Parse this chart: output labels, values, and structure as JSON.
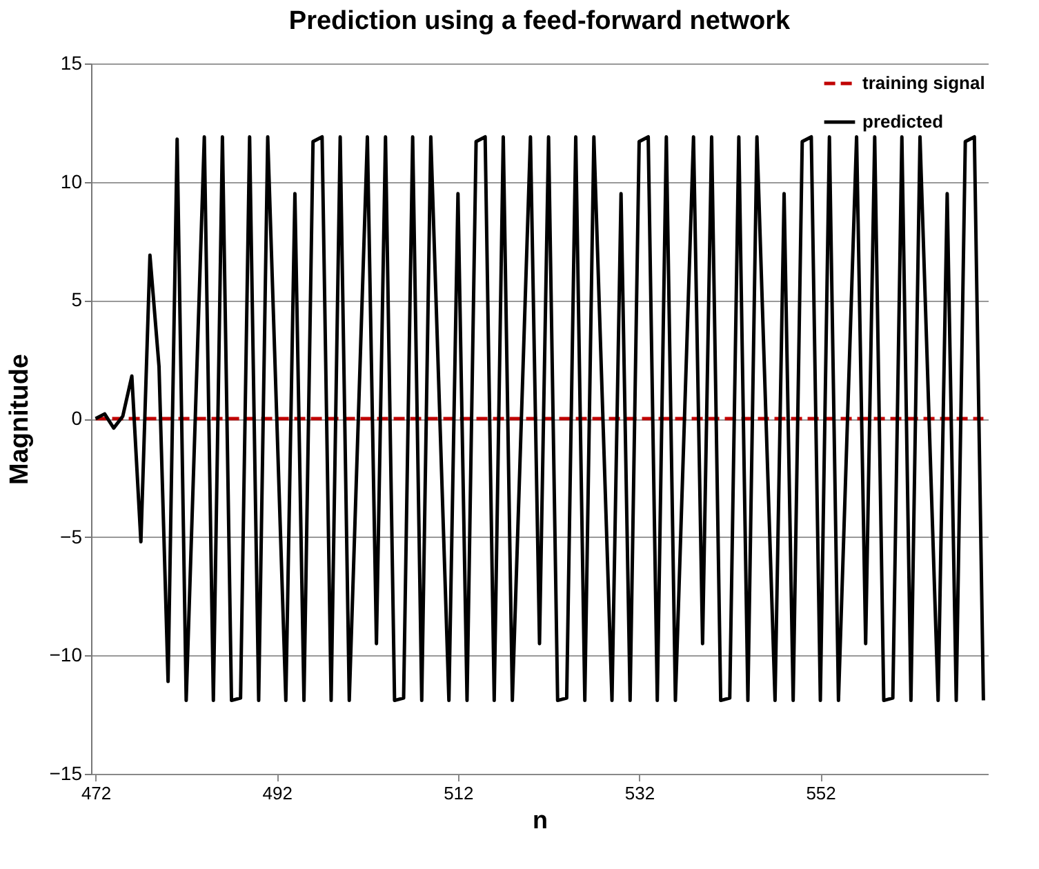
{
  "chart_data": {
    "type": "line",
    "title": "Prediction using a feed-forward network",
    "xlabel": "n",
    "ylabel": "Magnitude",
    "x": [
      472,
      473,
      474,
      475,
      476,
      477,
      478,
      479,
      480,
      481,
      482,
      483,
      484,
      485,
      486,
      487,
      488,
      489,
      490,
      491,
      492,
      493,
      494,
      495,
      496,
      497,
      498,
      499,
      500,
      501,
      502,
      503,
      504,
      505,
      506,
      507,
      508,
      509,
      510,
      511,
      512,
      513,
      514,
      515,
      516,
      517,
      518,
      519,
      520,
      521,
      522,
      523,
      524,
      525,
      526,
      527,
      528,
      529,
      530,
      531,
      532,
      533,
      534,
      535,
      536,
      537,
      538,
      539,
      540,
      541,
      542,
      543,
      544,
      545,
      546,
      547,
      548,
      549,
      550,
      551,
      552,
      553,
      554,
      555,
      556,
      557,
      558,
      559,
      560,
      561,
      562,
      563,
      564,
      565,
      566,
      567,
      568,
      569,
      570
    ],
    "series": [
      {
        "name": "training signal",
        "color": "#c00000",
        "line_style": "dashed",
        "values": [
          0,
          0,
          0,
          0,
          0,
          0,
          0,
          0,
          0,
          0,
          0,
          0,
          0,
          0,
          0,
          0,
          0,
          0,
          0,
          0,
          0,
          0,
          0,
          0,
          0,
          0,
          0,
          0,
          0,
          0,
          0,
          0,
          0,
          0,
          0,
          0,
          0,
          0,
          0,
          0,
          0,
          0,
          0,
          0,
          0,
          0,
          0,
          0,
          0,
          0,
          0,
          0,
          0,
          0,
          0,
          0,
          0,
          0,
          0,
          0,
          0,
          0,
          0,
          0,
          0,
          0,
          0,
          0,
          0,
          0,
          0,
          0,
          0,
          0,
          0,
          0,
          0,
          0,
          0,
          0,
          0,
          0,
          0,
          0,
          0,
          0,
          0,
          0,
          0,
          0,
          0,
          0,
          0,
          0,
          0,
          0,
          0,
          0,
          0
        ]
      },
      {
        "name": "predicted",
        "color": "#000000",
        "line_style": "solid",
        "values": [
          0,
          0.2,
          -0.4,
          0.1,
          1.8,
          -5.2,
          6.9,
          2.2,
          -11.1,
          11.8,
          -11.9,
          0,
          11.9,
          -11.9,
          11.9,
          -11.9,
          -11.8,
          11.9,
          -11.9,
          11.9,
          0,
          -11.9,
          9.5,
          -11.9,
          11.7,
          11.9,
          -11.9,
          11.9,
          -11.9,
          0,
          11.9,
          -9.5,
          11.9,
          -11.9,
          -11.8,
          11.9,
          -11.9,
          11.9,
          0,
          -11.9,
          9.5,
          -11.9,
          11.7,
          11.9,
          -11.9,
          11.9,
          -11.9,
          0,
          11.9,
          -9.5,
          11.9,
          -11.9,
          -11.8,
          11.9,
          -11.9,
          11.9,
          0,
          -11.9,
          9.5,
          -11.9,
          11.7,
          11.9,
          -11.9,
          11.9,
          -11.9,
          0,
          11.9,
          -9.5,
          11.9,
          -11.9,
          -11.8,
          11.9,
          -11.9,
          11.9,
          0,
          -11.9,
          9.5,
          -11.9,
          11.7,
          11.9,
          -11.9,
          11.9,
          -11.9,
          0,
          11.9,
          -9.5,
          11.9,
          -11.9,
          -11.8,
          11.9,
          -11.9,
          11.9,
          0,
          -11.9,
          9.5,
          -11.9,
          11.7,
          11.9,
          -11.9
        ]
      }
    ],
    "xlim": [
      471.5,
      570.5
    ],
    "xticks": [
      472,
      492,
      512,
      532,
      552
    ],
    "ylim": [
      -15,
      15
    ],
    "yticks": [
      -15,
      -10,
      -5,
      0,
      5,
      10,
      15
    ],
    "grid": "y",
    "legend": "top right"
  }
}
